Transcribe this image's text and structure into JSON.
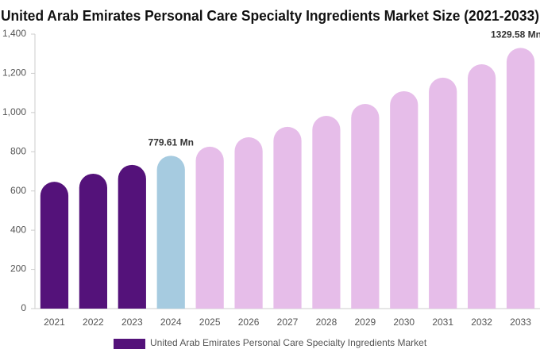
{
  "chart_data": {
    "type": "bar",
    "title": "United Arab Emirates Personal Care Specialty Ingredients Market Size (2021-2033)",
    "categories": [
      "2021",
      "2022",
      "2023",
      "2024",
      "2025",
      "2026",
      "2027",
      "2028",
      "2029",
      "2030",
      "2031",
      "2032",
      "2033"
    ],
    "series": [
      {
        "name": "United Arab Emirates Personal Care Specialty Ingredients Market",
        "color": "#54127a",
        "values": [
          647,
          688,
          733,
          779.61,
          826,
          874,
          927,
          983,
          1044,
          1109,
          1178,
          1246,
          1329.58
        ],
        "value_labels": [
          null,
          null,
          null,
          "779.61 Mn",
          null,
          null,
          null,
          null,
          null,
          null,
          null,
          null,
          "1329.58 Mn"
        ],
        "colors": [
          "#54127a",
          "#54127a",
          "#54127a",
          "#a6cbe0",
          "#e6bde9",
          "#e6bde9",
          "#e6bde9",
          "#e6bde9",
          "#e6bde9",
          "#e6bde9",
          "#e6bde9",
          "#e6bde9",
          "#e6bde9"
        ]
      }
    ],
    "ylim": [
      0,
      1400
    ],
    "yticks": [
      0,
      200,
      400,
      600,
      800,
      {
        "value": 1000,
        "label": "1,000"
      },
      {
        "value": 1200,
        "label": "1,200"
      },
      {
        "value": 1400,
        "label": "1,400"
      }
    ],
    "grid": false
  }
}
